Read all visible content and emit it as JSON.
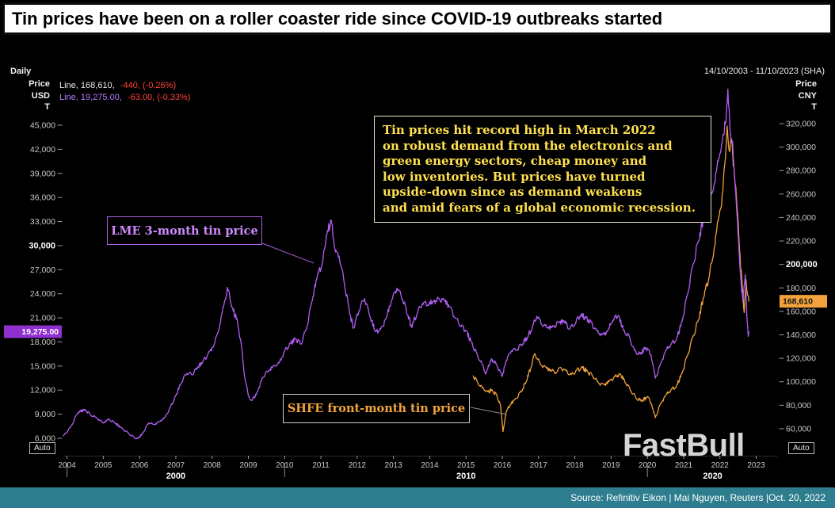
{
  "title_bar": {
    "title": "Tin prices have been on a roller coaster ride since COVID-19 outbreaks started"
  },
  "chart_header": {
    "interval": "Daily",
    "date_range": "14/10/2003 - 11/10/2023 (SHA)",
    "left_axis_unit": [
      "Price",
      "USD",
      "T"
    ],
    "right_axis_unit": [
      "Price",
      "CNY",
      "T"
    ],
    "legend": [
      {
        "label": "Line, 168,610,",
        "change": "-440, (-0.26%)",
        "color": "#e9e9e9",
        "change_color": "#ff4538"
      },
      {
        "label": "Line, 19,275.00,",
        "change": "-63.00, (-0.33%)",
        "color": "#b57aff",
        "change_color": "#ff4538"
      }
    ]
  },
  "annotation": {
    "lines": [
      "Tin prices hit record high in March 2022",
      "on robust demand from the electronics and",
      "green energy sectors, cheap money and",
      "low inventories. But prices have turned",
      "upside-down since as demand weakens",
      "and amid fears of a global economic recession."
    ]
  },
  "series_labels": {
    "lme": "LME 3-month tin price",
    "shfe": "SHFE front-month tin price"
  },
  "controls": {
    "auto_label": "Auto"
  },
  "watermark": {
    "text": "FastBull"
  },
  "footer": {
    "source": "Source: Refinitiv Eikon | Mai Nguyen, Reuters |Oct. 20, 2022"
  },
  "chart_data": {
    "type": "line",
    "title": "Tin prices have been on a roller coaster ride since COVID-19 outbreaks started",
    "x_axis": {
      "min": 2003.9,
      "max": 2023.6,
      "year_ticks": [
        2004,
        2005,
        2006,
        2007,
        2008,
        2009,
        2010,
        2011,
        2012,
        2013,
        2014,
        2015,
        2016,
        2017,
        2018,
        2019,
        2020,
        2021,
        2022,
        2023
      ],
      "decades": [
        {
          "label": "2000",
          "from": 2004,
          "to": 2010
        },
        {
          "label": "2010",
          "from": 2010,
          "to": 2020
        },
        {
          "label": "2020",
          "from": 2020,
          "to": 2023.6
        }
      ]
    },
    "left_axis": {
      "title": "Price USD T",
      "min": 3830,
      "max": 51220,
      "ticks": [
        45000,
        42000,
        39000,
        36000,
        33000,
        30000,
        27000,
        24000,
        21000,
        18000,
        15000,
        12000,
        9000,
        6000
      ],
      "bold_tick": 30000
    },
    "right_axis": {
      "title": "Price CNY T",
      "min": 37000,
      "max": 361200,
      "ticks": [
        320000,
        300000,
        280000,
        260000,
        240000,
        220000,
        200000,
        180000,
        160000,
        140000,
        120000,
        100000,
        80000,
        60000
      ],
      "bold_tick": 200000
    },
    "series": [
      {
        "name": "SHFE front-month tin price",
        "axis": "right",
        "currency": "CNY",
        "color": "#f2a23c",
        "last": 168610,
        "last_label": "168,610",
        "change": "-440, (-0.26%)",
        "box_color": "#f2a23c",
        "box_text_color": "#141414",
        "points": [
          [
            2015.2,
            105000
          ],
          [
            2015.3,
            100500
          ],
          [
            2015.45,
            95000
          ],
          [
            2015.6,
            91500
          ],
          [
            2015.72,
            93000
          ],
          [
            2015.85,
            88500
          ],
          [
            2015.95,
            80000
          ],
          [
            2016.02,
            57500
          ],
          [
            2016.1,
            74000
          ],
          [
            2016.22,
            80500
          ],
          [
            2016.35,
            85000
          ],
          [
            2016.5,
            91000
          ],
          [
            2016.65,
            99500
          ],
          [
            2016.8,
            113000
          ],
          [
            2016.9,
            124000
          ],
          [
            2017.05,
            115000
          ],
          [
            2017.2,
            112500
          ],
          [
            2017.35,
            109500
          ],
          [
            2017.5,
            108000
          ],
          [
            2017.62,
            112000
          ],
          [
            2017.75,
            109500
          ],
          [
            2017.9,
            106000
          ],
          [
            2018.05,
            110000
          ],
          [
            2018.2,
            112500
          ],
          [
            2018.35,
            108500
          ],
          [
            2018.5,
            104500
          ],
          [
            2018.65,
            99000
          ],
          [
            2018.8,
            97500
          ],
          [
            2018.95,
            100500
          ],
          [
            2019.1,
            104500
          ],
          [
            2019.25,
            106500
          ],
          [
            2019.4,
            99000
          ],
          [
            2019.55,
            92000
          ],
          [
            2019.7,
            85500
          ],
          [
            2019.85,
            83500
          ],
          [
            2020.0,
            87500
          ],
          [
            2020.12,
            80500
          ],
          [
            2020.22,
            69500
          ],
          [
            2020.35,
            80500
          ],
          [
            2020.5,
            88500
          ],
          [
            2020.65,
            93000
          ],
          [
            2020.8,
            96000
          ],
          [
            2020.95,
            107000
          ],
          [
            2021.1,
            122000
          ],
          [
            2021.25,
            138000
          ],
          [
            2021.4,
            152000
          ],
          [
            2021.55,
            172000
          ],
          [
            2021.7,
            189000
          ],
          [
            2021.8,
            205000
          ],
          [
            2021.9,
            227000
          ],
          [
            2022.0,
            246000
          ],
          [
            2022.08,
            262000
          ],
          [
            2022.15,
            290000
          ],
          [
            2022.2,
            318000
          ],
          [
            2022.27,
            296000
          ],
          [
            2022.32,
            307000
          ],
          [
            2022.4,
            277000
          ],
          [
            2022.47,
            249000
          ],
          [
            2022.54,
            213000
          ],
          [
            2022.62,
            179000
          ],
          [
            2022.67,
            159000
          ],
          [
            2022.72,
            187000
          ],
          [
            2022.76,
            174000
          ],
          [
            2022.8,
            168610
          ]
        ]
      },
      {
        "name": "LME 3-month tin price",
        "axis": "left",
        "currency": "USD",
        "color": "#b15ef5",
        "last": 19275,
        "last_label": "19,275.00",
        "change": "-63.00, (-0.33%)",
        "box_color": "#8f2fd0",
        "box_text_color": "#ffffff",
        "points": [
          [
            2003.9,
            6300
          ],
          [
            2004.1,
            7400
          ],
          [
            2004.3,
            9200
          ],
          [
            2004.5,
            9600
          ],
          [
            2004.65,
            8900
          ],
          [
            2004.8,
            8600
          ],
          [
            2005.0,
            7900
          ],
          [
            2005.15,
            8400
          ],
          [
            2005.3,
            8000
          ],
          [
            2005.5,
            7300
          ],
          [
            2005.7,
            6600
          ],
          [
            2005.85,
            6100
          ],
          [
            2005.95,
            5950
          ],
          [
            2006.1,
            6700
          ],
          [
            2006.25,
            7900
          ],
          [
            2006.4,
            7700
          ],
          [
            2006.55,
            8100
          ],
          [
            2006.7,
            8600
          ],
          [
            2006.85,
            9900
          ],
          [
            2007.0,
            11300
          ],
          [
            2007.15,
            12900
          ],
          [
            2007.3,
            14100
          ],
          [
            2007.45,
            13900
          ],
          [
            2007.6,
            14800
          ],
          [
            2007.75,
            15600
          ],
          [
            2007.9,
            16600
          ],
          [
            2008.05,
            17600
          ],
          [
            2008.2,
            19800
          ],
          [
            2008.35,
            23200
          ],
          [
            2008.42,
            24800
          ],
          [
            2008.55,
            22300
          ],
          [
            2008.7,
            20600
          ],
          [
            2008.8,
            17800
          ],
          [
            2008.9,
            13600
          ],
          [
            2009.0,
            11300
          ],
          [
            2009.1,
            10700
          ],
          [
            2009.25,
            11800
          ],
          [
            2009.4,
            13600
          ],
          [
            2009.55,
            14400
          ],
          [
            2009.7,
            15000
          ],
          [
            2009.85,
            15400
          ],
          [
            2010.0,
            16900
          ],
          [
            2010.15,
            17800
          ],
          [
            2010.3,
            18400
          ],
          [
            2010.45,
            17700
          ],
          [
            2010.6,
            19600
          ],
          [
            2010.75,
            23000
          ],
          [
            2010.9,
            26200
          ],
          [
            2011.05,
            28000
          ],
          [
            2011.15,
            31100
          ],
          [
            2011.28,
            33200
          ],
          [
            2011.4,
            29200
          ],
          [
            2011.5,
            28700
          ],
          [
            2011.65,
            25200
          ],
          [
            2011.8,
            21400
          ],
          [
            2011.9,
            19700
          ],
          [
            2012.05,
            21900
          ],
          [
            2012.2,
            23400
          ],
          [
            2012.35,
            21200
          ],
          [
            2012.5,
            19300
          ],
          [
            2012.65,
            19600
          ],
          [
            2012.8,
            21000
          ],
          [
            2012.95,
            23200
          ],
          [
            2013.1,
            24700
          ],
          [
            2013.25,
            23300
          ],
          [
            2013.4,
            21300
          ],
          [
            2013.5,
            19800
          ],
          [
            2013.65,
            21500
          ],
          [
            2013.8,
            22800
          ],
          [
            2013.95,
            22600
          ],
          [
            2014.1,
            23000
          ],
          [
            2014.25,
            23400
          ],
          [
            2014.4,
            23200
          ],
          [
            2014.55,
            22400
          ],
          [
            2014.7,
            21000
          ],
          [
            2014.85,
            20000
          ],
          [
            2015.0,
            19400
          ],
          [
            2015.15,
            18000
          ],
          [
            2015.3,
            16500
          ],
          [
            2015.45,
            15200
          ],
          [
            2015.55,
            14000
          ],
          [
            2015.7,
            15900
          ],
          [
            2015.85,
            15100
          ],
          [
            2016.0,
            13700
          ],
          [
            2016.1,
            15600
          ],
          [
            2016.25,
            16900
          ],
          [
            2016.4,
            17000
          ],
          [
            2016.55,
            17700
          ],
          [
            2016.7,
            18600
          ],
          [
            2016.85,
            20100
          ],
          [
            2016.95,
            21200
          ],
          [
            2017.1,
            20100
          ],
          [
            2017.25,
            19800
          ],
          [
            2017.4,
            19900
          ],
          [
            2017.55,
            20500
          ],
          [
            2017.7,
            20600
          ],
          [
            2017.85,
            19600
          ],
          [
            2018.0,
            20200
          ],
          [
            2018.15,
            21300
          ],
          [
            2018.3,
            21000
          ],
          [
            2018.45,
            20500
          ],
          [
            2018.6,
            19400
          ],
          [
            2018.75,
            18900
          ],
          [
            2018.9,
            19300
          ],
          [
            2019.05,
            20700
          ],
          [
            2019.2,
            21300
          ],
          [
            2019.35,
            19400
          ],
          [
            2019.5,
            18700
          ],
          [
            2019.65,
            16900
          ],
          [
            2019.8,
            16500
          ],
          [
            2019.95,
            17300
          ],
          [
            2020.1,
            16400
          ],
          [
            2020.22,
            13500
          ],
          [
            2020.35,
            15100
          ],
          [
            2020.5,
            16900
          ],
          [
            2020.65,
            17700
          ],
          [
            2020.8,
            18300
          ],
          [
            2020.95,
            20500
          ],
          [
            2021.1,
            23800
          ],
          [
            2021.25,
            27500
          ],
          [
            2021.4,
            30500
          ],
          [
            2021.55,
            33300
          ],
          [
            2021.7,
            35000
          ],
          [
            2021.8,
            36800
          ],
          [
            2021.9,
            39200
          ],
          [
            2022.0,
            41500
          ],
          [
            2022.1,
            43800
          ],
          [
            2022.17,
            45500
          ],
          [
            2022.22,
            49500
          ],
          [
            2022.28,
            44200
          ],
          [
            2022.35,
            43000
          ],
          [
            2022.42,
            37500
          ],
          [
            2022.5,
            31500
          ],
          [
            2022.57,
            26200
          ],
          [
            2022.63,
            23000
          ],
          [
            2022.7,
            26400
          ],
          [
            2022.75,
            20600
          ],
          [
            2022.78,
            18700
          ],
          [
            2022.8,
            19275
          ]
        ]
      }
    ]
  }
}
